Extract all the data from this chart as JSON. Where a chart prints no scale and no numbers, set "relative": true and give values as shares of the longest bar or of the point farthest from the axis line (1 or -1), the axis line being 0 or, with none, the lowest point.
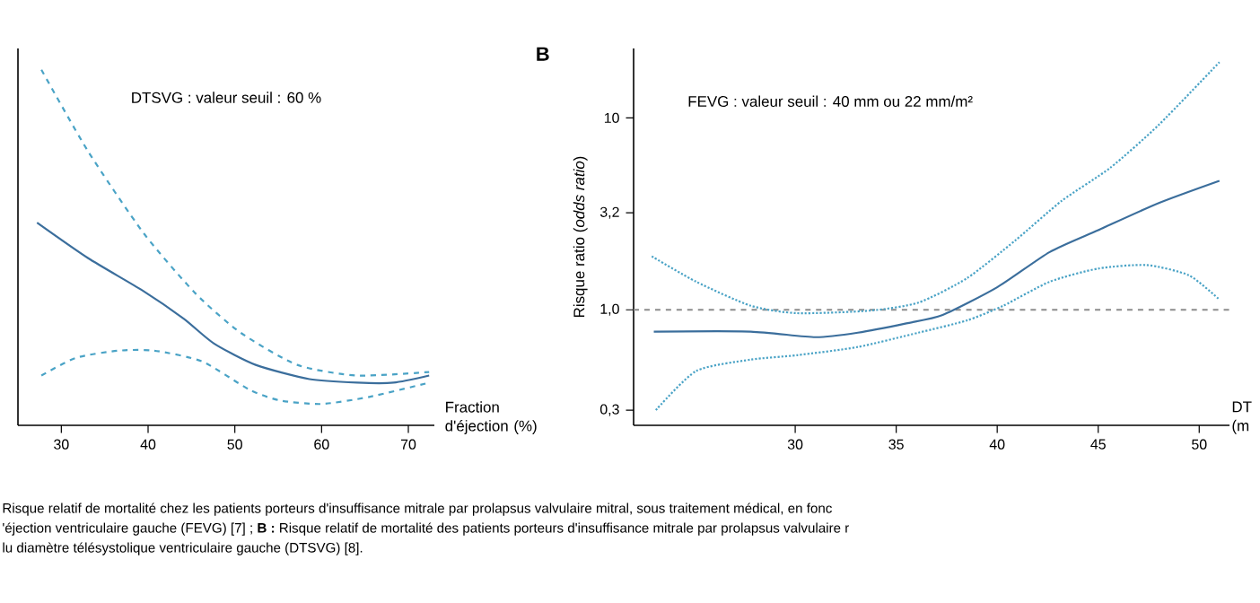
{
  "chart_data": [
    {
      "type": "line",
      "relative": true,
      "xlabel": "Fraction d'éjection (%)",
      "xlim": [
        25,
        73
      ],
      "xticks": [
        30,
        40,
        50,
        60,
        70
      ],
      "annotations": [
        "DTSVG : valeur seuil : 60 %",
        "Risque relatif de mortalité chez les patients porteurs d'insuffisance mitrale par prolapsus valvulaire mitral, sous traitement médical, en fonc",
        "'éjection ventriculaire gauche (FEVG) [7] ; **B :** Risque relatif de mortalité des patients porteurs d'insuffisance mitrale par prolapsus valvulaire r",
        "lu diamètre télésystolique ventriculaire gauche (DTSVG) [8]."
      ],
      "marker": "none",
      "series": [
        {
          "color": "#4aa3c6",
          "line_style": "dashed",
          "x": [
            27.7,
            33.1,
            39.5,
            45.5,
            50.7,
            57.2,
            64.1,
            72.4
          ],
          "values": [
            1.0,
            0.77,
            0.54,
            0.37,
            0.26,
            0.17,
            0.14,
            0.15
          ]
        },
        {
          "color": "#3b6e9c",
          "line_style": "solid",
          "x": [
            27.2,
            33.1,
            39.3,
            44.1,
            47.6,
            52.4,
            58.6,
            64.1,
            68.3,
            72.4
          ],
          "values": [
            0.57,
            0.47,
            0.38,
            0.3,
            0.23,
            0.17,
            0.13,
            0.12,
            0.12,
            0.14
          ]
        },
        {
          "color": "#4aa3c6",
          "line_style": "dashed",
          "x": [
            27.7,
            31.7,
            36.6,
            40.7,
            46.2,
            51.7,
            55.2,
            60,
            65.5,
            72.4
          ],
          "values": [
            0.14,
            0.19,
            0.21,
            0.21,
            0.18,
            0.1,
            0.07,
            0.06,
            0.08,
            0.12
          ]
        }
      ]
    },
    {
      "type": "line",
      "title": "B",
      "xlabel": "DT (m",
      "ylabel": "Risque ratio (*odds ratio*)",
      "log": "y",
      "xlim": [
        22,
        51.5
      ],
      "xticks": [
        30,
        35,
        40,
        45,
        50
      ],
      "ylim": [
        0.25,
        23
      ],
      "yticks": [
        {
          "value": 0.3,
          "label": "0,3"
        },
        {
          "value": 1,
          "label": "1,0"
        },
        {
          "value": 3.2,
          "label": "3,2"
        },
        10
      ],
      "annotations": [
        "FEVG : valeur seuil : 40 mm ou 22 mm/m²"
      ],
      "marker": "none",
      "ref_lines": [
        {
          "axis": "y",
          "value": 1,
          "color": "#8c8c8c",
          "line_style": "dashed"
        }
      ],
      "series": [
        {
          "color": "#3b6e9c",
          "line_style": "solid",
          "x": [
            23.0,
            27.8,
            31.0,
            33.1,
            35.5,
            37.3,
            40.0,
            42.6,
            45.0,
            48.0,
            51.0
          ],
          "values": [
            0.77,
            0.77,
            0.72,
            0.76,
            0.85,
            0.94,
            1.31,
            2.0,
            2.6,
            3.6,
            4.7
          ]
        },
        {
          "color": "#4aa3c6",
          "line_style": "dotted",
          "x": [
            22.9,
            25.1,
            27.8,
            30.1,
            33.7,
            36.1,
            38.5,
            40.9,
            43.2,
            45.6,
            48.0,
            51.0
          ],
          "values": [
            1.9,
            1.4,
            1.05,
            0.96,
            0.99,
            1.09,
            1.46,
            2.3,
            3.7,
            5.5,
            9.2,
            19.5
          ]
        },
        {
          "color": "#4aa3c6",
          "line_style": "dotted",
          "x": [
            23.1,
            25.1,
            27.8,
            30.1,
            33.1,
            36.1,
            38.5,
            40.3,
            42.6,
            45.0,
            47.4,
            49.5,
            51.0
          ],
          "values": [
            0.3,
            0.48,
            0.55,
            0.58,
            0.64,
            0.76,
            0.88,
            1.05,
            1.4,
            1.64,
            1.71,
            1.51,
            1.13
          ]
        }
      ]
    }
  ]
}
